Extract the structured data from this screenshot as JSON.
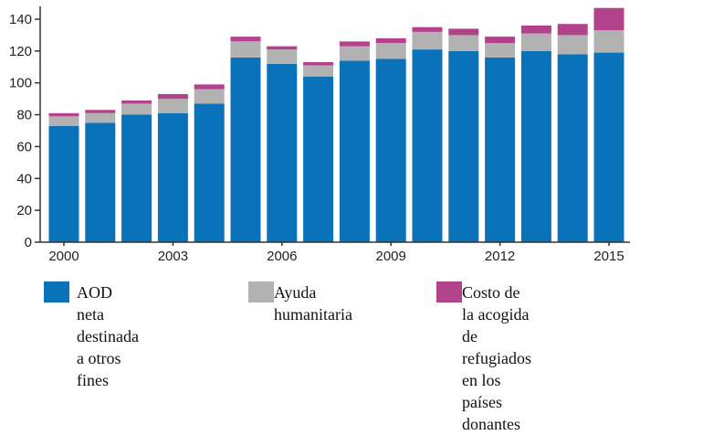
{
  "chart_data": {
    "type": "bar",
    "stacked": true,
    "categories": [
      "2000",
      "2001",
      "2002",
      "2003",
      "2004",
      "2005",
      "2006",
      "2007",
      "2008",
      "2009",
      "2010",
      "2011",
      "2012",
      "2013",
      "2014",
      "2015"
    ],
    "x_tick_labels": [
      "2000",
      "2003",
      "2006",
      "2009",
      "2012",
      "2015"
    ],
    "y_ticks": [
      0,
      20,
      40,
      60,
      80,
      100,
      120,
      140
    ],
    "ylim": [
      0,
      148
    ],
    "grid": false,
    "legend_position": "bottom",
    "series": [
      {
        "name": "AOD neta destinada a otros fines",
        "color": "#0a72b8",
        "values": [
          73,
          75,
          80,
          81,
          87,
          116,
          112,
          104,
          114,
          115,
          121,
          120,
          116,
          120,
          118,
          119
        ]
      },
      {
        "name": "Ayuda humanitaria",
        "color": "#b2b2b2",
        "values": [
          6,
          6,
          7,
          9,
          9,
          10,
          9,
          7,
          9,
          10,
          11,
          10,
          9,
          11,
          12,
          14
        ]
      },
      {
        "name": "Costo de la acogida de refugiados en los países donantes",
        "color": "#b3428d",
        "values": [
          2,
          2,
          2,
          3,
          3,
          3,
          2,
          2,
          3,
          3,
          3,
          4,
          4,
          5,
          7,
          14
        ]
      }
    ],
    "title": "",
    "xlabel": "",
    "ylabel": ""
  },
  "legend": [
    {
      "line1": "AOD neta destinada",
      "line2": "a otros fines",
      "color": "#0a72b8"
    },
    {
      "line1": "Ayuda humanitaria",
      "line2": "",
      "color": "#b2b2b2"
    },
    {
      "line1": "Costo de la acogida de refugiados",
      "line2": "en los países donantes",
      "color": "#b3428d"
    }
  ]
}
